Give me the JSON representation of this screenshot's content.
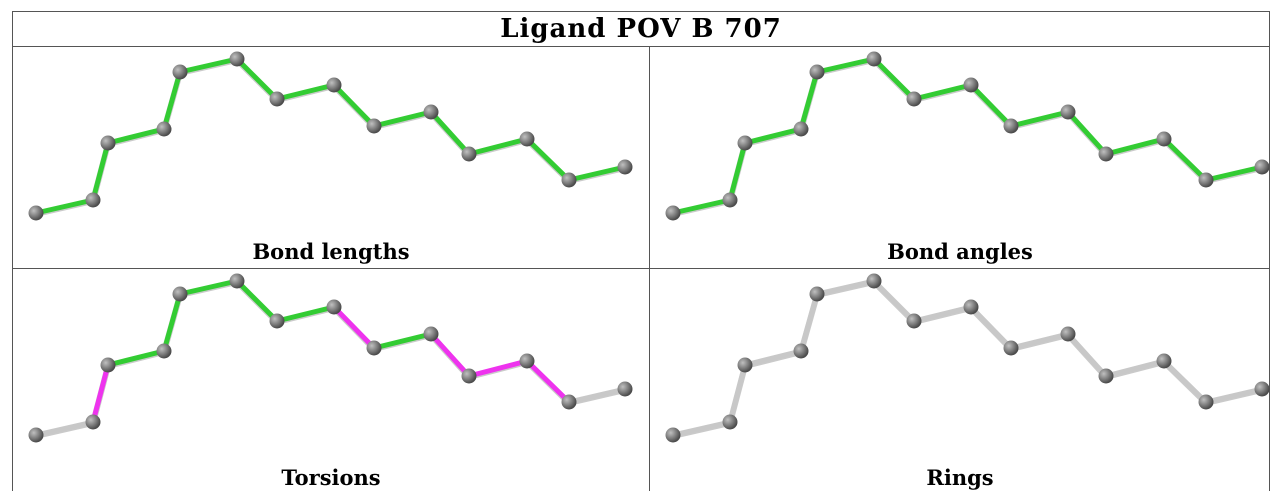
{
  "title": "Ligand POV B 707",
  "colors": {
    "ok_bond": "#33cc33",
    "outlier_bond": "#ee33ee",
    "neutral_bond": "#c8c8c8",
    "atom": "#808080",
    "border": "#555555"
  },
  "panels": [
    {
      "label": "Bond lengths",
      "bond_colors": [
        "ok",
        "ok",
        "ok",
        "ok",
        "ok",
        "ok",
        "ok",
        "ok",
        "ok",
        "ok",
        "ok",
        "ok",
        "ok",
        "ok"
      ]
    },
    {
      "label": "Bond angles",
      "bond_colors": [
        "ok",
        "ok",
        "ok",
        "ok",
        "ok",
        "ok",
        "ok",
        "ok",
        "ok",
        "ok",
        "ok",
        "ok",
        "ok",
        "ok"
      ]
    },
    {
      "label": "Torsions",
      "bond_colors": [
        "neutral",
        "outlier",
        "ok",
        "ok",
        "ok",
        "ok",
        "ok",
        "outlier",
        "ok",
        "outlier",
        "outlier",
        "outlier",
        "neutral",
        "neutral"
      ]
    },
    {
      "label": "Rings",
      "bond_colors": [
        "neutral",
        "neutral",
        "neutral",
        "neutral",
        "neutral",
        "neutral",
        "neutral",
        "neutral",
        "neutral",
        "neutral",
        "neutral",
        "neutral",
        "neutral",
        "neutral"
      ]
    }
  ]
}
